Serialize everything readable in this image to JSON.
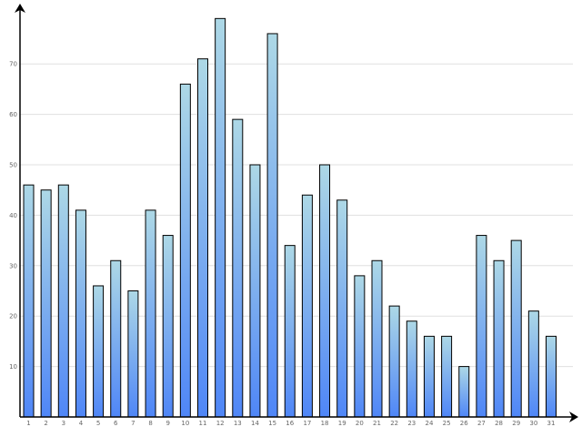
{
  "chart_data": {
    "type": "bar",
    "categories": [
      "1",
      "2",
      "3",
      "4",
      "5",
      "6",
      "7",
      "8",
      "9",
      "10",
      "11",
      "12",
      "13",
      "14",
      "15",
      "16",
      "17",
      "18",
      "19",
      "20",
      "21",
      "22",
      "23",
      "24",
      "25",
      "26",
      "27",
      "28",
      "29",
      "30",
      "31"
    ],
    "values": [
      46,
      45,
      46,
      41,
      26,
      31,
      25,
      41,
      36,
      66,
      71,
      79,
      59,
      50,
      76,
      34,
      44,
      50,
      43,
      28,
      31,
      22,
      19,
      16,
      16,
      10,
      36,
      31,
      35,
      21,
      16
    ],
    "title": "",
    "xlabel": "",
    "ylabel": "",
    "ylim": [
      0,
      82
    ],
    "yticks": [
      10,
      20,
      30,
      40,
      50,
      60,
      70
    ],
    "grid": true,
    "legend": "none",
    "colors": {
      "bar_top": "#add8e6",
      "bar_bottom": "#4f86f7",
      "bar_border": "#000000",
      "grid": "#e0e0e0",
      "axis": "#000000",
      "tick_text": "#666666"
    }
  }
}
